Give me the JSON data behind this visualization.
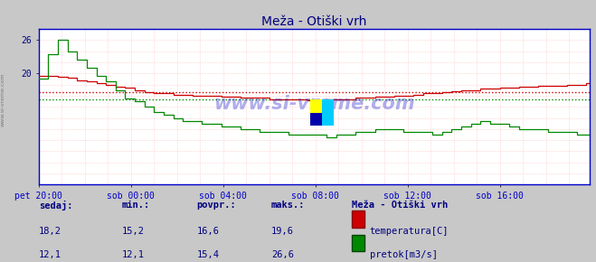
{
  "title": "Meža - Otiški vrh",
  "title_color": "#000080",
  "bg_color": "#c8c8c8",
  "plot_bg_color": "#ffffff",
  "watermark": "www.si-vreme.com",
  "xlabel_color": "#0000cc",
  "ylabel_color": "#000080",
  "xlim": [
    0,
    287
  ],
  "ylim": [
    0,
    28
  ],
  "yticks": [
    20,
    26
  ],
  "xtick_labels": [
    "pet 20:00",
    "sob 00:00",
    "sob 04:00",
    "sob 08:00",
    "sob 12:00",
    "sob 16:00"
  ],
  "xtick_positions": [
    0,
    48,
    96,
    144,
    192,
    240
  ],
  "temp_color": "#cc0000",
  "flow_color": "#008800",
  "temp_avg": 16.6,
  "flow_avg": 15.4,
  "footer_text_color": "#000080",
  "legend_title": "Meža - Otiški vrh",
  "sedaj_label": "sedaj:",
  "min_label": "min.:",
  "povpr_label": "povpr.:",
  "maks_label": "maks.:",
  "temp_sedaj": "18,2",
  "temp_min": "15,2",
  "temp_povpr": "16,6",
  "temp_maks": "19,6",
  "flow_sedaj": "12,1",
  "flow_min": "12,1",
  "flow_povpr": "15,4",
  "flow_maks": "26,6",
  "temp_legend": "temperatura[C]",
  "flow_legend": "pretok[m3/s]"
}
